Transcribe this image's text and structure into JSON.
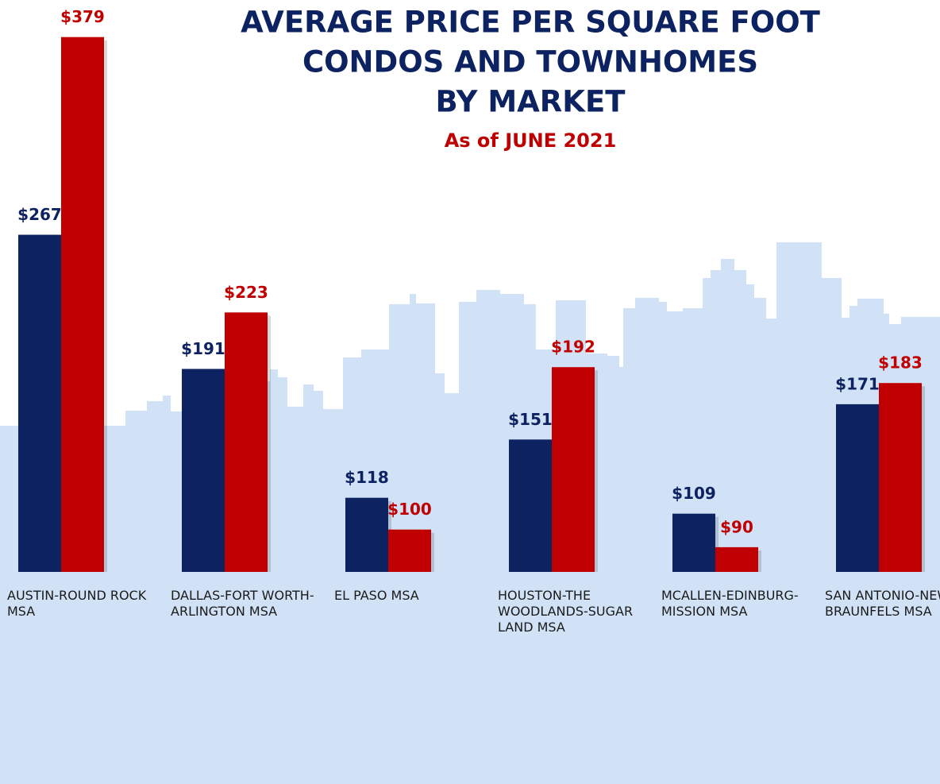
{
  "chart_data": {
    "type": "bar",
    "title": [
      "AVERAGE PRICE PER SQUARE FOOT",
      "CONDOS AND TOWNHOMES",
      "BY MARKET"
    ],
    "subtitle": "As of JUNE 2021",
    "categories": [
      "AUSTIN-ROUND ROCK MSA",
      "DALLAS-FORT WORTH-ARLINGTON MSA",
      "EL PASO MSA",
      "HOUSTON-THE WOODLANDS-SUGAR LAND MSA",
      "MCALLEN-EDINBURG-MISSION MSA",
      "SAN ANTONIO-NEW BRAUNFELS MSA"
    ],
    "series": [
      {
        "color": "#0d2260",
        "values": [
          267,
          191,
          118,
          151,
          109,
          171
        ],
        "value_labels": [
          "$267",
          "$191",
          "$118",
          "$151",
          "$109",
          "$171"
        ]
      },
      {
        "color": "#c00000",
        "values": [
          379,
          223,
          100,
          192,
          90,
          183
        ],
        "value_labels": [
          "$379",
          "$223",
          "$100",
          "$192",
          "$90",
          "$183"
        ]
      }
    ],
    "ylim": [
      76,
      400
    ]
  }
}
